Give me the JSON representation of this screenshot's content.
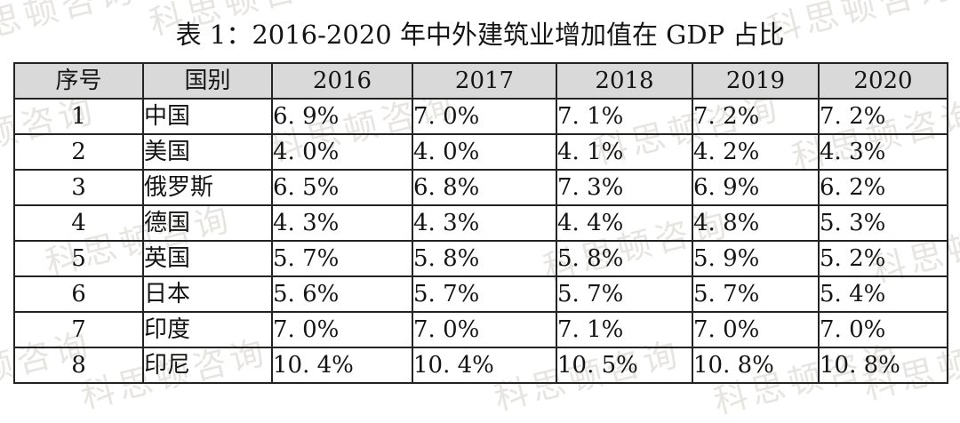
{
  "page": {
    "title": "表 1：2016-2020 年中外建筑业增加值在 GDP 占比"
  },
  "watermark": {
    "text": "科思顿咨询",
    "color": "#d4d0ca",
    "positions": [
      [
        -60,
        -18
      ],
      [
        165,
        -30
      ],
      [
        860,
        -22
      ],
      [
        -105,
        118
      ],
      [
        300,
        112
      ],
      [
        665,
        115
      ],
      [
        888,
        122
      ],
      [
        48,
        240
      ],
      [
        608,
        246
      ],
      [
        978,
        248
      ],
      [
        -110,
        382
      ],
      [
        88,
        390
      ],
      [
        553,
        392
      ],
      [
        800,
        396
      ],
      [
        968,
        380
      ]
    ]
  },
  "table": {
    "header_bg": "#d9d9d9",
    "border_color": "#232323",
    "columns": [
      "序号",
      "国别",
      "2016",
      "2017",
      "2018",
      "2019",
      "2020"
    ],
    "rows": [
      {
        "no": "1",
        "country": "中国",
        "values": [
          "6. 9%",
          "7. 0%",
          "7. 1%",
          "7. 2%",
          "7. 2%"
        ]
      },
      {
        "no": "2",
        "country": "美国",
        "values": [
          "4. 0%",
          "4. 0%",
          "4. 1%",
          "4. 2%",
          "4. 3%"
        ]
      },
      {
        "no": "3",
        "country": "俄罗斯",
        "values": [
          "6. 5%",
          "6. 8%",
          "7. 3%",
          "6. 9%",
          "6. 2%"
        ]
      },
      {
        "no": "4",
        "country": "德国",
        "values": [
          "4. 3%",
          "4. 3%",
          "4. 4%",
          "4. 8%",
          "5. 3%"
        ]
      },
      {
        "no": "5",
        "country": "英国",
        "values": [
          "5. 7%",
          "5. 8%",
          "5. 8%",
          "5. 9%",
          "5. 2%"
        ]
      },
      {
        "no": "6",
        "country": "日本",
        "values": [
          "5. 6%",
          "5. 7%",
          "5. 7%",
          "5. 7%",
          "5. 4%"
        ]
      },
      {
        "no": "7",
        "country": "印度",
        "values": [
          "7. 0%",
          "7. 0%",
          "7. 1%",
          "7. 0%",
          "7. 0%"
        ]
      },
      {
        "no": "8",
        "country": "印尼",
        "values": [
          "10. 4%",
          "10. 4%",
          "10. 5%",
          "10. 8%",
          "10. 8%"
        ]
      }
    ]
  },
  "chart_data": {
    "type": "table",
    "title": "表 1：2016-2020 年中外建筑业增加值在 GDP 占比",
    "columns": [
      "序号",
      "国别",
      "2016",
      "2017",
      "2018",
      "2019",
      "2020"
    ],
    "rows": [
      [
        "1",
        "中国",
        "6.9%",
        "7.0%",
        "7.1%",
        "7.2%",
        "7.2%"
      ],
      [
        "2",
        "美国",
        "4.0%",
        "4.0%",
        "4.1%",
        "4.2%",
        "4.3%"
      ],
      [
        "3",
        "俄罗斯",
        "6.5%",
        "6.8%",
        "7.3%",
        "6.9%",
        "6.2%"
      ],
      [
        "4",
        "德国",
        "4.3%",
        "4.3%",
        "4.4%",
        "4.8%",
        "5.3%"
      ],
      [
        "5",
        "英国",
        "5.7%",
        "5.8%",
        "5.8%",
        "5.9%",
        "5.2%"
      ],
      [
        "6",
        "日本",
        "5.6%",
        "5.7%",
        "5.7%",
        "5.7%",
        "5.4%"
      ],
      [
        "7",
        "印度",
        "7.0%",
        "7.0%",
        "7.1%",
        "7.0%",
        "7.0%"
      ],
      [
        "8",
        "印尼",
        "10.4%",
        "10.4%",
        "10.5%",
        "10.8%",
        "10.8%"
      ]
    ]
  }
}
